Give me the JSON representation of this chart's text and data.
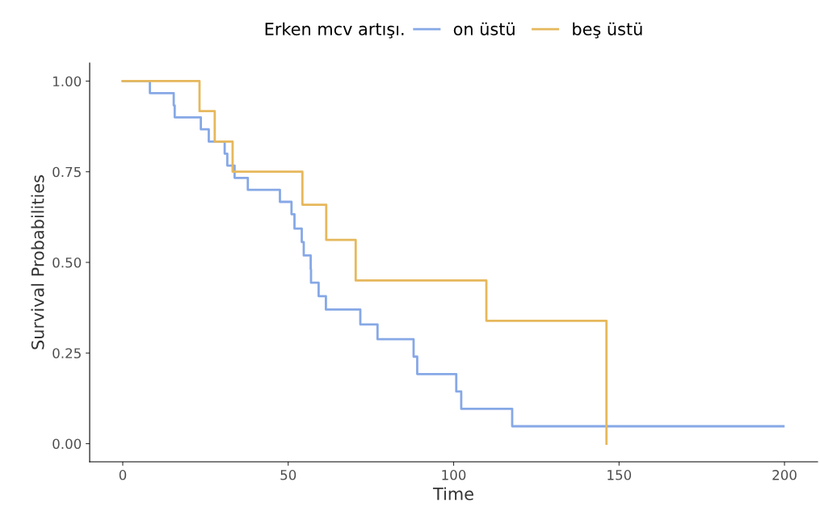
{
  "chart_data": {
    "type": "step",
    "legend_title": "Erken mcv artışı.",
    "xlabel": "Time",
    "ylabel": "Survival Probabilities",
    "series": [
      {
        "name": "on üstü",
        "color": "#86a8e6",
        "x": [
          0,
          8.2,
          15.4,
          15.7,
          23.6,
          26.0,
          30.8,
          31.6,
          33.8,
          37.8,
          47.5,
          51.0,
          51.9,
          54.1,
          54.7,
          56.8,
          56.9,
          59.2,
          61.4,
          71.8,
          77.0,
          87.9,
          89.0,
          100.8,
          102.3,
          117.7,
          199.7
        ],
        "values": [
          1.0,
          0.967,
          0.933,
          0.9,
          0.867,
          0.833,
          0.8,
          0.767,
          0.733,
          0.7,
          0.667,
          0.633,
          0.593,
          0.556,
          0.519,
          0.481,
          0.444,
          0.407,
          0.37,
          0.329,
          0.288,
          0.24,
          0.192,
          0.144,
          0.096,
          0.048,
          0.048
        ]
      },
      {
        "name": "beş üstü",
        "color": "#e6b85c",
        "x": [
          0,
          23.2,
          27.8,
          33.2,
          54.3,
          61.5,
          70.4,
          109.9,
          146.2
        ],
        "values": [
          1.0,
          0.917,
          0.833,
          0.75,
          0.659,
          0.562,
          0.45,
          0.339,
          0.0
        ]
      }
    ],
    "xlim": [
      -10,
      210
    ],
    "xticks": [
      0,
      50,
      100,
      150,
      200
    ],
    "ylim": [
      -0.05,
      1.05
    ],
    "yticks": [
      {
        "value": 0,
        "label": "0.00"
      },
      {
        "value": 0.25,
        "label": "0.25"
      },
      {
        "value": 0.5,
        "label": "0.50"
      },
      {
        "value": 0.75,
        "label": "0.75"
      },
      {
        "value": 1.0,
        "label": "1.00"
      }
    ],
    "legend": "top",
    "grid": false
  }
}
